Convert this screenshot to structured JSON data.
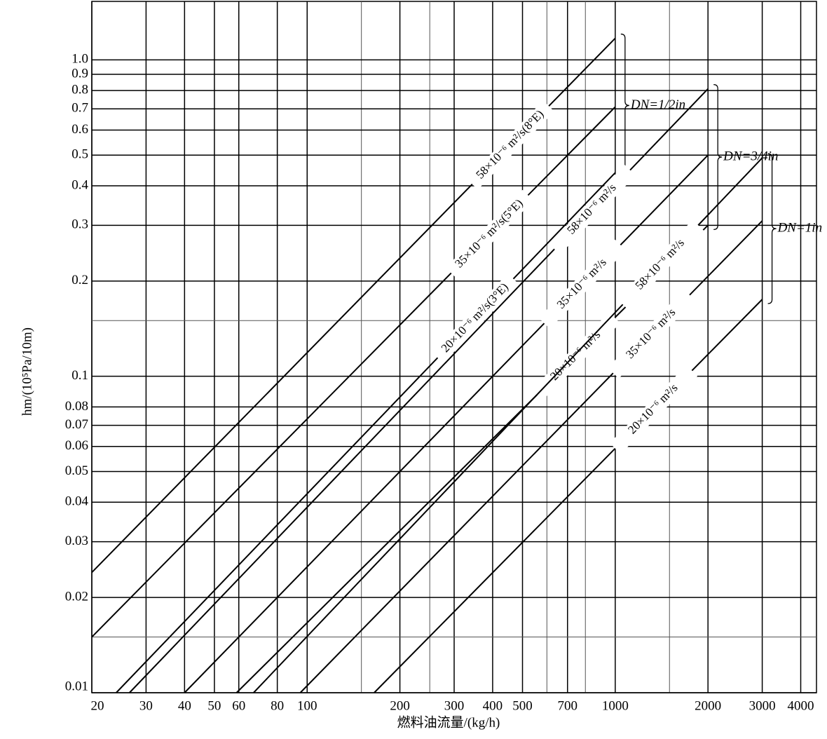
{
  "chart_data": {
    "type": "line",
    "log_x": true,
    "log_y": true,
    "grid": true,
    "x_label": "燃料油流量/(kg/h)",
    "y_label": "hm/(10⁵Pa/10m)",
    "xlim": [
      20,
      4500
    ],
    "ylim": [
      0.01,
      1.53
    ],
    "xticks": [
      20,
      30,
      40,
      50,
      60,
      80,
      100,
      200,
      300,
      400,
      500,
      700,
      1000,
      2000,
      3000,
      4000
    ],
    "x_minor_grid": [
      150,
      250,
      600,
      800,
      1500
    ],
    "yticks": [
      0.01,
      0.02,
      0.03,
      0.04,
      0.05,
      0.06,
      0.07,
      0.08,
      0.1,
      0.2,
      0.3,
      0.4,
      0.5,
      0.6,
      0.7,
      0.8,
      0.9,
      {
        "value": 1,
        "label": "1.0"
      }
    ],
    "y_minor_grid": [
      0.015,
      0.15
    ],
    "color": "#000000",
    "groups": [
      {
        "label": "DN=1/2in",
        "series": [
          {
            "name": "58×10⁻⁶ m²/s(8°E)",
            "x": [
              20,
              1000
            ],
            "values": [
              0.024,
              1.17
            ]
          },
          {
            "name": "35×10⁻⁶ m²/s(5°E)",
            "x": [
              20,
              1000
            ],
            "values": [
              0.015,
              0.71
            ]
          },
          {
            "name": "20×10⁻⁶ m²/s(3°E)",
            "x": [
              24,
              1000
            ],
            "values": [
              0.01,
              0.44
            ]
          }
        ]
      },
      {
        "label": "DN=3/4in",
        "series": [
          {
            "name": "58×10⁻⁶ m²/s",
            "x": [
              26.5,
              2000
            ],
            "values": [
              0.01,
              0.81
            ]
          },
          {
            "name": "35×10⁻⁶ m²/s",
            "x": [
              40,
              2000
            ],
            "values": [
              0.01,
              0.5
            ]
          },
          {
            "name": "20×10⁻⁶ m²/s",
            "x": [
              59,
              2000
            ],
            "values": [
              0.01,
              0.3
            ]
          }
        ]
      },
      {
        "label": "DN=1in",
        "series": [
          {
            "name": "58×10⁻⁶ m²/s",
            "x": [
              67,
              3000
            ],
            "values": [
              0.01,
              0.49
            ]
          },
          {
            "name": "35×10⁻⁶ m²/s",
            "x": [
              95,
              3000
            ],
            "values": [
              0.01,
              0.31
            ]
          },
          {
            "name": "20×10⁻⁶ m²/s",
            "x": [
              165,
              3000
            ],
            "values": [
              0.01,
              0.175
            ]
          }
        ]
      }
    ]
  }
}
